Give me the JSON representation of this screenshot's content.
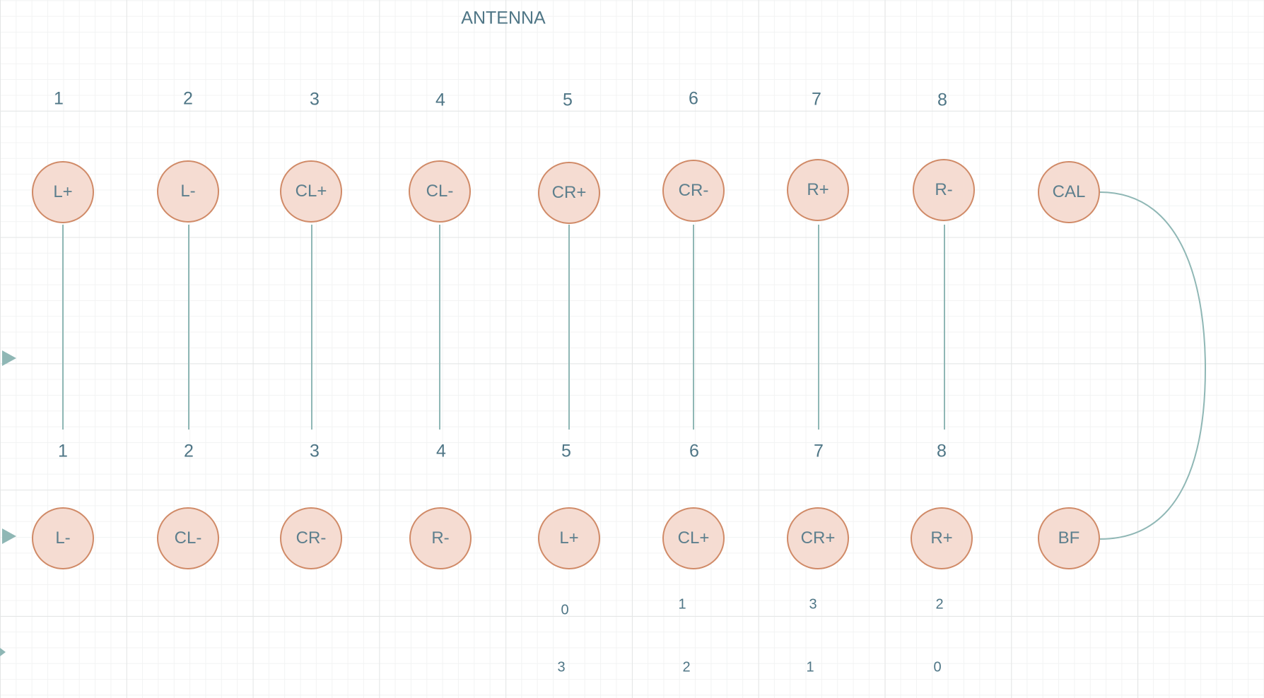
{
  "title": "ANTENNA",
  "colors": {
    "node_fill": "#f5dcd2",
    "node_stroke": "#d08a67",
    "line": "#8fb7b5",
    "text": "#4f7686"
  },
  "top_pin_numbers": [
    "1",
    "2",
    "3",
    "4",
    "5",
    "6",
    "7",
    "8"
  ],
  "top_nodes": [
    "L+",
    "L-",
    "CL+",
    "CL-",
    "CR+",
    "CR-",
    "R+",
    "R-",
    "CAL"
  ],
  "bottom_pin_numbers": [
    "1",
    "2",
    "3",
    "4",
    "5",
    "6",
    "7",
    "8"
  ],
  "bottom_nodes": [
    "L-",
    "CL-",
    "CR-",
    "R-",
    "L+",
    "CL+",
    "CR+",
    "R+",
    "BF"
  ],
  "index_row_1": [
    "0",
    "1",
    "3",
    "2"
  ],
  "index_row_2": [
    "3",
    "2",
    "1",
    "0"
  ]
}
